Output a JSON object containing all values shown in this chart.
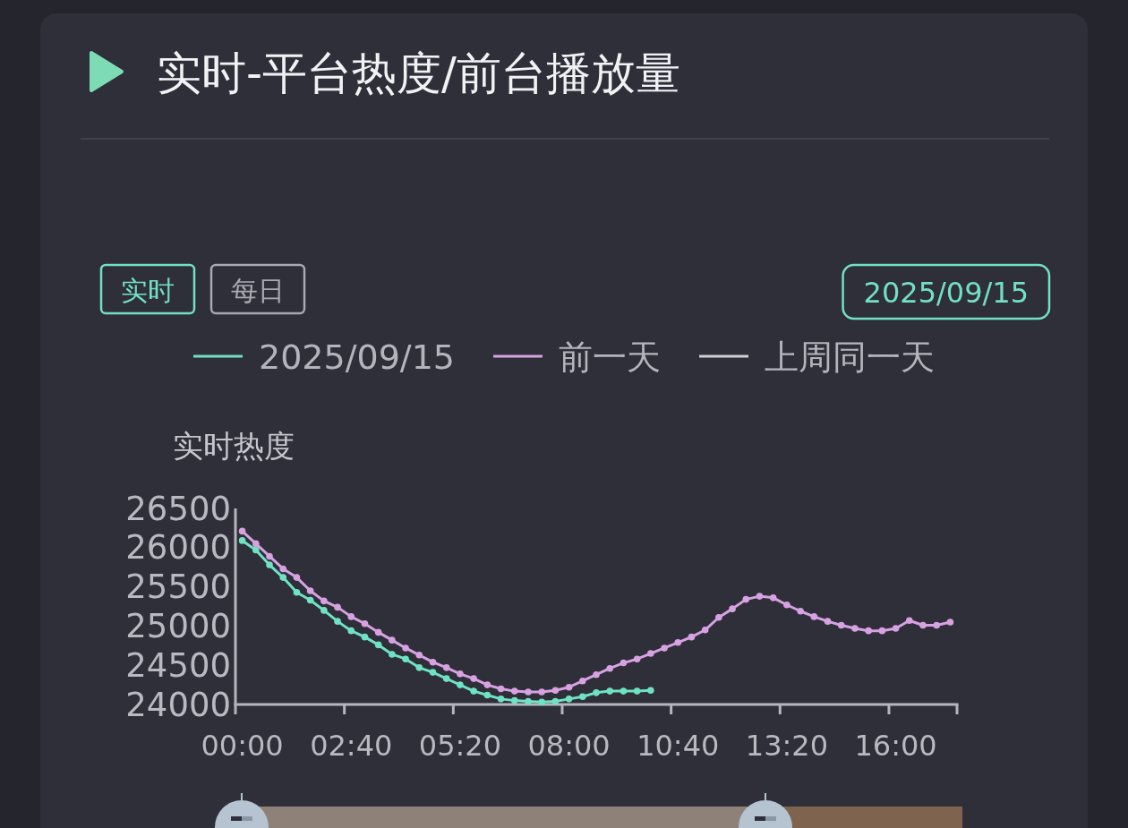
{
  "chart_data": {
    "type": "line",
    "title": "实时-平台热度/前台播放量",
    "ylabel": "实时热度",
    "annotations": [
      "实时",
      "每日",
      "2025/09/15"
    ],
    "categories": [
      "00:00",
      null,
      null,
      null,
      null,
      null,
      null,
      null,
      "02:40",
      null,
      null,
      null,
      null,
      null,
      null,
      null,
      "05:20",
      null,
      null,
      null,
      null,
      null,
      null,
      null,
      "08:00",
      null,
      null,
      null,
      null,
      null,
      null,
      null,
      "10:40",
      null,
      null,
      null,
      null,
      null,
      null,
      null,
      "13:20",
      null,
      null,
      null,
      null,
      null,
      null,
      null,
      "16:00",
      null,
      null,
      null,
      null
    ],
    "series": [
      {
        "name": "2025/09/15",
        "color": "#70e2c4",
        "values": [
          26090,
          25970,
          25780,
          25620,
          25430,
          25330,
          25200,
          25060,
          24940,
          24860,
          24760,
          24640,
          24580,
          24470,
          24410,
          24330,
          24250,
          24170,
          24120,
          24070,
          24050,
          24040,
          24030,
          24040,
          24070,
          24100,
          24150,
          24170,
          24170,
          24170,
          24180,
          null,
          null,
          null,
          null,
          null,
          null,
          null,
          null,
          null,
          null,
          null,
          null,
          null,
          null,
          null,
          null,
          null,
          null,
          null,
          null,
          null,
          null
        ]
      },
      {
        "name": "前一天",
        "color": "#d7a2e2",
        "values": [
          26210,
          26050,
          25890,
          25730,
          25620,
          25450,
          25320,
          25240,
          25120,
          25030,
          24920,
          24820,
          24720,
          24630,
          24540,
          24470,
          24390,
          24330,
          24250,
          24200,
          24170,
          24160,
          24160,
          24180,
          24220,
          24300,
          24380,
          24460,
          24530,
          24580,
          24650,
          24720,
          24790,
          24860,
          24950,
          25110,
          25220,
          25340,
          25380,
          25360,
          25270,
          25190,
          25120,
          25060,
          25010,
          24970,
          24940,
          24940,
          24970,
          25070,
          25010,
          25010,
          25050
        ]
      },
      {
        "name": "上周同一天",
        "color": "#cfcfd4",
        "values": [
          null,
          null,
          null,
          null,
          null,
          null,
          null,
          null,
          null,
          null,
          null,
          null,
          null,
          null,
          null,
          null,
          null,
          null,
          null,
          null,
          null,
          null,
          null,
          null,
          null,
          null,
          null,
          null,
          null,
          null,
          null,
          null,
          null,
          null,
          null,
          null,
          null,
          null,
          null,
          null,
          null,
          null,
          null,
          null,
          null,
          null,
          null,
          null,
          null,
          null,
          null,
          null,
          null
        ]
      }
    ],
    "ylim": [
      24000,
      26500
    ],
    "yticks": [
      24000,
      24500,
      25000,
      25500,
      26000,
      26500
    ],
    "legend": "top",
    "marker": "circle",
    "line_style": "solid"
  }
}
